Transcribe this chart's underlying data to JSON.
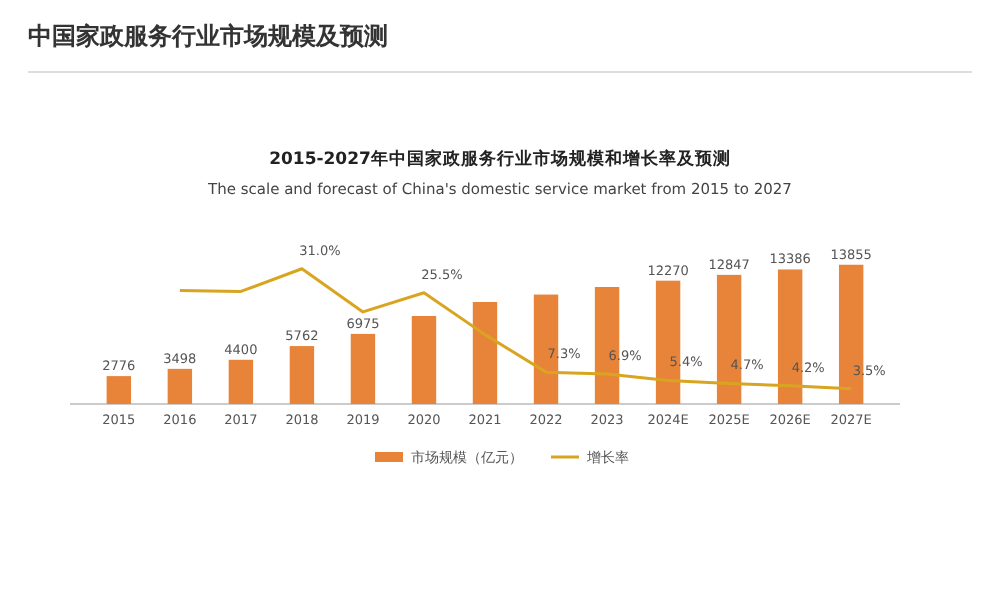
{
  "chart_data": {
    "type": "bar",
    "title": "中国家政服务行业市场规模及预测",
    "subtitle": "2015-2027年中国家政服务行业市场规模和增长率及预测",
    "annotations": [
      "The scale and forecast of China's domestic service market from 2015 to 2027"
    ],
    "categories": [
      "2015",
      "2016",
      "2017",
      "2018",
      "2019",
      "2020",
      "2021",
      "2022",
      "2023",
      "2024E",
      "2025E",
      "2026E",
      "2027E"
    ],
    "series": [
      {
        "name": "市场规模（亿元）",
        "color": "#e8843a",
        "values": [
          2776,
          3498,
          4400,
          5762,
          6975,
          8754,
          10149,
          10890,
          11641,
          12270,
          12847,
          13386,
          13855
        ],
        "value_labels": [
          "2776",
          "3498",
          "4400",
          "5762",
          "6975",
          null,
          null,
          null,
          null,
          "12270",
          "12847",
          "13386",
          "13855"
        ]
      },
      {
        "name": "增长率",
        "type": "line",
        "axis": "y2",
        "color": "#d9a520",
        "values": [
          null,
          26.0,
          25.8,
          31.0,
          21.1,
          25.5,
          15.9,
          7.3,
          6.9,
          5.4,
          4.7,
          4.2,
          3.5
        ],
        "value_labels": [
          null,
          null,
          null,
          "31.0%",
          null,
          "25.5%",
          null,
          "7.3%",
          "6.9%",
          "5.4%",
          "4.7%",
          "4.2%",
          "3.5%"
        ]
      }
    ],
    "tick_labels": "x",
    "legend": "bottom",
    "marker": "none"
  }
}
